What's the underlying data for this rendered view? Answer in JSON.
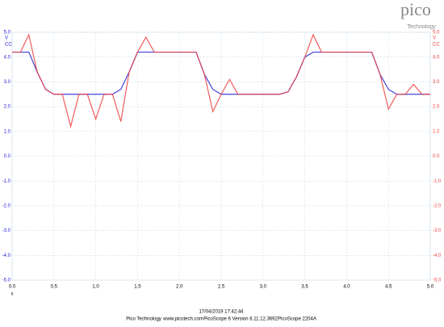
{
  "chart_data": {
    "type": "line",
    "logo": "pico",
    "logo_subtitle": "Technology",
    "y_unit": "V",
    "y_name": "CC",
    "y2_unit": "V",
    "y2_name": "CC",
    "xlabel": "s",
    "x": [
      0,
      0.1,
      0.2,
      0.3,
      0.4,
      0.5,
      0.6,
      0.7,
      0.8,
      0.9,
      1.0,
      1.1,
      1.2,
      1.3,
      1.4,
      1.5,
      1.6,
      1.7,
      1.8,
      1.9,
      2.0,
      2.1,
      2.2,
      2.3,
      2.4,
      2.5,
      2.6,
      2.7,
      2.8,
      2.9,
      3.0,
      3.1,
      3.2,
      3.3,
      3.4,
      3.5,
      3.6,
      3.7,
      3.8,
      3.9,
      4.0,
      4.1,
      4.2,
      4.3,
      4.4,
      4.5,
      4.6,
      4.7,
      4.8,
      4.9,
      5.0
    ],
    "series": [
      {
        "name": "A",
        "color": "#2020d0",
        "axis": "y",
        "values": [
          4.2,
          4.2,
          4.2,
          3.4,
          2.7,
          2.5,
          2.5,
          2.5,
          2.5,
          2.5,
          2.5,
          2.5,
          2.5,
          2.7,
          3.4,
          4.2,
          4.2,
          4.2,
          4.2,
          4.2,
          4.2,
          4.2,
          4.2,
          3.3,
          2.7,
          2.5,
          2.5,
          2.5,
          2.5,
          2.5,
          2.5,
          2.5,
          2.5,
          2.6,
          3.2,
          4.0,
          4.2,
          4.2,
          4.2,
          4.2,
          4.2,
          4.2,
          4.2,
          4.2,
          3.3,
          2.7,
          2.5,
          2.5,
          2.5,
          2.5,
          2.5
        ]
      },
      {
        "name": "B",
        "color": "#f04040",
        "axis": "y2",
        "values": [
          4.2,
          4.2,
          4.9,
          3.4,
          2.7,
          2.5,
          2.5,
          1.2,
          2.5,
          2.5,
          1.5,
          2.5,
          2.5,
          1.4,
          3.4,
          4.2,
          4.8,
          4.2,
          4.2,
          4.2,
          4.2,
          4.2,
          4.2,
          3.3,
          1.8,
          2.5,
          3.1,
          2.5,
          2.5,
          2.5,
          2.5,
          2.5,
          2.5,
          2.6,
          3.2,
          4.0,
          4.9,
          4.2,
          4.2,
          4.2,
          4.2,
          4.2,
          4.2,
          4.2,
          3.3,
          1.9,
          2.5,
          2.5,
          2.9,
          2.5,
          2.5
        ]
      }
    ],
    "xlim": [
      0,
      5
    ],
    "xticks": [
      {
        "value": 0,
        "label": "0.0"
      },
      0.5,
      {
        "value": 1,
        "label": "1.0"
      },
      1.5,
      {
        "value": 2,
        "label": "2.0"
      },
      2.5,
      {
        "value": 3,
        "label": "3.0"
      },
      3.5,
      {
        "value": 4,
        "label": "4.0"
      },
      4.5,
      {
        "value": 5,
        "label": "5.0"
      }
    ],
    "ylim": [
      -5,
      5
    ],
    "yticks": [
      {
        "value": -5,
        "label": "-5.0"
      },
      {
        "value": -4,
        "label": "-4.0"
      },
      {
        "value": -3,
        "label": "-3.0"
      },
      {
        "value": -2,
        "label": "-2.0"
      },
      {
        "value": -1,
        "label": "-1.0"
      },
      {
        "value": 0,
        "label": "0.0"
      },
      {
        "value": 1,
        "label": "1.0"
      },
      {
        "value": 2,
        "label": "2.0"
      },
      {
        "value": 3,
        "label": "3.0"
      },
      {
        "value": 4,
        "label": "4.0"
      },
      {
        "value": 5,
        "label": "5.0"
      }
    ],
    "y2lim": [
      -5,
      5
    ],
    "y2ticks": [
      {
        "value": -5,
        "label": "-5.0"
      },
      {
        "value": -4,
        "label": "-4.0"
      },
      {
        "value": -3,
        "label": "-3.0"
      },
      {
        "value": -2,
        "label": "-2.0"
      },
      {
        "value": -1,
        "label": "-1.0"
      },
      {
        "value": 0,
        "label": "0.0"
      },
      {
        "value": 1,
        "label": "1.0"
      },
      {
        "value": 2,
        "label": "2.0"
      },
      {
        "value": 3,
        "label": "3.0"
      },
      {
        "value": 4,
        "label": "4.0"
      },
      {
        "value": 5,
        "label": "5.0"
      }
    ],
    "grid": true,
    "timestamp": "17/04/2019 17:42:44",
    "footer": [
      "Pico Technology",
      "www.picotech.com",
      "PicoScope 6 Version 6.11.12.3692",
      "PicoScope 2204A"
    ]
  }
}
